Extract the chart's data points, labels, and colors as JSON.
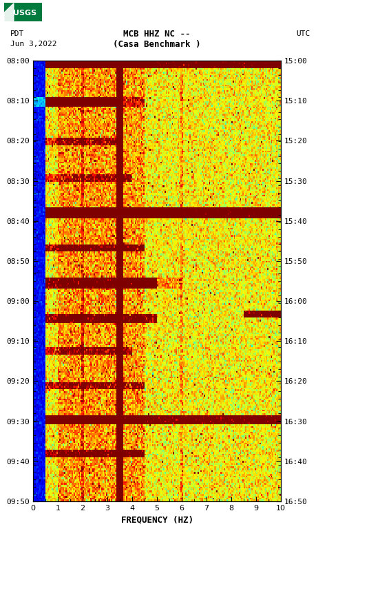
{
  "title_line1": "MCB HHZ NC --",
  "title_line2": "(Casa Benchmark )",
  "date_label": "Jun 3,2022",
  "left_time_label": "PDT",
  "right_time_label": "UTC",
  "left_yticks": [
    "08:00",
    "08:10",
    "08:20",
    "08:30",
    "08:40",
    "08:50",
    "09:00",
    "09:10",
    "09:20",
    "09:30",
    "09:40",
    "09:50"
  ],
  "right_yticks": [
    "15:00",
    "15:10",
    "15:20",
    "15:30",
    "15:40",
    "15:50",
    "16:00",
    "16:10",
    "16:20",
    "16:30",
    "16:40",
    "16:50"
  ],
  "xlabel": "FREQUENCY (HZ)",
  "xmin": 0,
  "xmax": 10,
  "xticks": [
    0,
    1,
    2,
    3,
    4,
    5,
    6,
    7,
    8,
    9,
    10
  ],
  "fig_width": 5.52,
  "fig_height": 8.93,
  "background": "#ffffff",
  "colormap": "jet",
  "seed": 12345,
  "n_freq": 200,
  "n_time": 240,
  "vmin": -160,
  "vmax": -80
}
